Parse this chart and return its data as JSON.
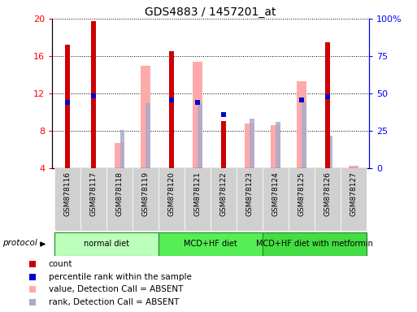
{
  "title": "GDS4883 / 1457201_at",
  "samples": [
    "GSM878116",
    "GSM878117",
    "GSM878118",
    "GSM878119",
    "GSM878120",
    "GSM878121",
    "GSM878122",
    "GSM878123",
    "GSM878124",
    "GSM878125",
    "GSM878126",
    "GSM878127"
  ],
  "count_values": [
    17.2,
    19.7,
    null,
    null,
    16.5,
    null,
    9.1,
    null,
    null,
    null,
    17.5,
    null
  ],
  "percentile_values": [
    11.1,
    11.8,
    null,
    null,
    11.3,
    11.1,
    9.8,
    null,
    null,
    11.3,
    11.7,
    null
  ],
  "absent_value_values": [
    null,
    null,
    6.7,
    15.0,
    null,
    15.4,
    null,
    8.8,
    8.6,
    13.3,
    null,
    4.3
  ],
  "absent_rank_values": [
    null,
    null,
    8.1,
    11.0,
    null,
    11.0,
    null,
    9.3,
    9.0,
    11.1,
    7.5,
    null
  ],
  "count_color": "#cc0000",
  "percentile_color": "#0000cc",
  "absent_value_color": "#ffaaaa",
  "absent_rank_color": "#aaaacc",
  "ylim_left": [
    4,
    20
  ],
  "ylim_right": [
    0,
    100
  ],
  "yticks_left": [
    4,
    8,
    12,
    16,
    20
  ],
  "yticks_right": [
    0,
    25,
    50,
    75,
    100
  ],
  "yticklabels_right": [
    "0",
    "25",
    "50",
    "75",
    "100%"
  ],
  "protocol_groups": [
    {
      "label": "normal diet",
      "start": 0,
      "end": 3,
      "color": "#bbffbb"
    },
    {
      "label": "MCD+HF diet",
      "start": 4,
      "end": 7,
      "color": "#55ee55"
    },
    {
      "label": "MCD+HF diet with metformin",
      "start": 8,
      "end": 11,
      "color": "#44dd44"
    }
  ],
  "legend_items": [
    {
      "label": "count",
      "color": "#cc0000"
    },
    {
      "label": "percentile rank within the sample",
      "color": "#0000cc"
    },
    {
      "label": "value, Detection Call = ABSENT",
      "color": "#ffaaaa"
    },
    {
      "label": "rank, Detection Call = ABSENT",
      "color": "#aaaacc"
    }
  ]
}
